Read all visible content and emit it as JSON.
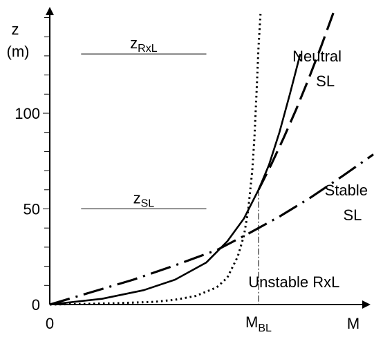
{
  "chart_data": {
    "type": "line",
    "ylabel": "z",
    "yunit": "(m)",
    "xlabel": "M",
    "x_origin_label": "0",
    "ylim": [
      0,
      150
    ],
    "y_ticks": [
      0,
      50,
      100
    ],
    "y_tick_labels": [
      "0",
      "50",
      "100"
    ],
    "y_minor_tick_step": 10,
    "xlim": [
      0,
      1.6
    ],
    "x_marker": {
      "main": "M",
      "sub": "BL",
      "x": 1.0
    },
    "reference_lines": [
      {
        "main": "z",
        "sub": "RxL",
        "y": 131,
        "x_range": [
          0.15,
          0.75
        ]
      },
      {
        "main": "z",
        "sub": "SL",
        "y": 50,
        "x_range": [
          0.15,
          0.75
        ]
      }
    ],
    "series": [
      {
        "style": "dotted",
        "x": [
          0.0,
          0.3,
          0.5,
          0.6,
          0.7,
          0.8,
          0.85,
          0.9,
          0.93,
          0.95,
          0.97,
          0.98,
          0.99,
          1.0,
          1.01
        ],
        "y": [
          0,
          0.6,
          1.4,
          2.5,
          4.5,
          9,
          14,
          25,
          36,
          49,
          70,
          87,
          110,
          135,
          153
        ]
      },
      {
        "style": "solid",
        "x": [
          0.0,
          0.25,
          0.45,
          0.6,
          0.75,
          0.85,
          0.93,
          1.0,
          1.05,
          1.1,
          1.15,
          1.2
        ],
        "y": [
          0,
          3,
          7.5,
          13,
          22,
          33,
          45,
          60,
          73,
          90,
          110,
          131
        ]
      },
      {
        "style": "long-dash",
        "name": "Neutral SL",
        "x": [
          1.0,
          1.06,
          1.12,
          1.18,
          1.24,
          1.3,
          1.36
        ],
        "y": [
          60,
          73,
          87,
          102,
          118,
          135,
          153
        ]
      },
      {
        "style": "dash-dot",
        "name": "Stable SL",
        "x": [
          0.0,
          0.2,
          0.4,
          0.6,
          0.8,
          0.95,
          1.1,
          1.25,
          1.4,
          1.55
        ],
        "y": [
          0,
          6.5,
          13,
          20.5,
          28.5,
          37,
          46,
          56,
          67,
          78.5
        ]
      }
    ],
    "annotations": [
      {
        "text": "Neutral",
        "x": 1.28,
        "y": 127
      },
      {
        "text": "SL",
        "x": 1.32,
        "y": 114
      },
      {
        "text": "Stable",
        "x": 1.42,
        "y": 57
      },
      {
        "text": "SL",
        "x": 1.45,
        "y": 44
      },
      {
        "text": "Unstable RxL",
        "x": 1.17,
        "y": 9
      }
    ]
  }
}
